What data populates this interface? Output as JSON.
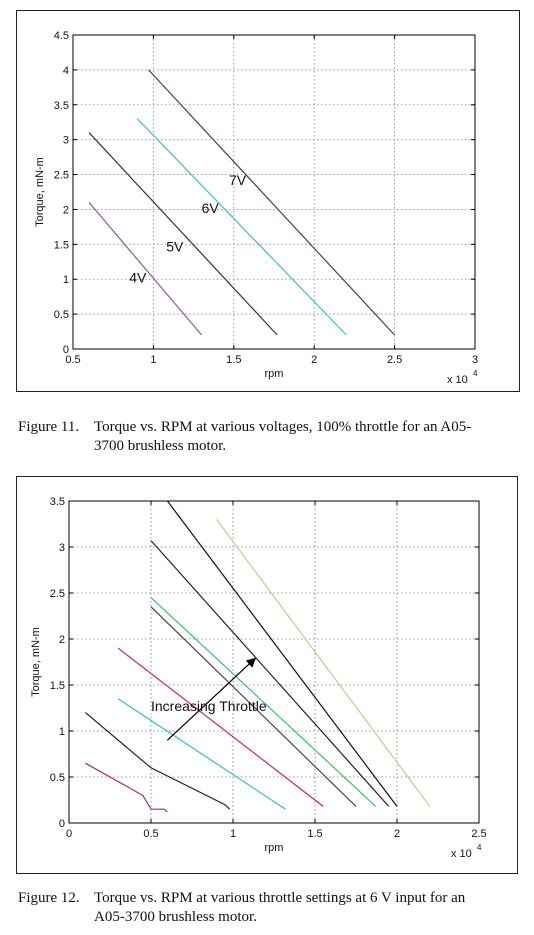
{
  "colors": {
    "grid": "#9a9a9a",
    "axis": "#000000"
  },
  "figures": [
    {
      "caption": {
        "number": "Figure 11.",
        "text1": "Torque vs. RPM at various voltages, 100% throttle for an A05-",
        "text2": "3700 brushless motor."
      }
    },
    {
      "caption": {
        "number": "Figure 12.",
        "text1": "Torque vs. RPM at various throttle settings at 6 V input for an",
        "text2": "A05-3700 brushless motor."
      }
    }
  ],
  "chart_data": [
    {
      "type": "line",
      "xlabel": "rpm",
      "ylabel": "Torque, mN-m",
      "x_multiplier_label": "x 10",
      "x_multiplier_exp": "4",
      "xlim": [
        0.5,
        3
      ],
      "ylim": [
        0,
        4.5
      ],
      "xticks": [
        0.5,
        1,
        1.5,
        2,
        2.5,
        3
      ],
      "yticks": [
        0,
        0.5,
        1,
        1.5,
        2,
        2.5,
        3,
        3.5,
        4,
        4.5
      ],
      "xtick_labels": [
        "0.5",
        "1",
        "1.5",
        "2",
        "2.5",
        "3"
      ],
      "ytick_labels": [
        "0",
        "0.5",
        "1",
        "1.5",
        "2",
        "2.5",
        "3",
        "3.5",
        "4",
        "4.5"
      ],
      "grid": true,
      "series": [
        {
          "name": "4V",
          "color": "#8a5a9a",
          "x": [
            0.6,
            1.3
          ],
          "y": [
            2.1,
            0.2
          ]
        },
        {
          "name": "5V",
          "color": "#333333",
          "x": [
            0.6,
            1.77
          ],
          "y": [
            3.1,
            0.2
          ]
        },
        {
          "name": "6V",
          "color": "#3cc4b8",
          "x": [
            0.9,
            2.2
          ],
          "y": [
            3.3,
            0.2
          ]
        },
        {
          "name": "7V",
          "color": "#4a4040",
          "x": [
            0.97,
            2.5
          ],
          "y": [
            4.0,
            0.2
          ]
        }
      ],
      "annotations": [
        {
          "text": "4V",
          "x": 0.85,
          "y": 0.95
        },
        {
          "text": "5V",
          "x": 1.08,
          "y": 1.4
        },
        {
          "text": "6V",
          "x": 1.3,
          "y": 1.95
        },
        {
          "text": "7V",
          "x": 1.47,
          "y": 2.35
        }
      ]
    },
    {
      "type": "line",
      "xlabel": "rpm",
      "ylabel": "Torque, mN-m",
      "x_multiplier_label": "x 10",
      "x_multiplier_exp": "4",
      "xlim": [
        0,
        2.5
      ],
      "ylim": [
        0,
        3.5
      ],
      "xticks": [
        0,
        0.5,
        1,
        1.5,
        2,
        2.5
      ],
      "yticks": [
        0,
        0.5,
        1,
        1.5,
        2,
        2.5,
        3,
        3.5
      ],
      "xtick_labels": [
        "0",
        "0.5",
        "1",
        "1.5",
        "2",
        "2.5"
      ],
      "ytick_labels": [
        "0",
        "0.5",
        "1",
        "1.5",
        "2",
        "2.5",
        "3",
        "3.5"
      ],
      "grid": true,
      "series": [
        {
          "color": "#a03070",
          "x": [
            0.1,
            0.45,
            0.5,
            0.58,
            0.6
          ],
          "y": [
            0.65,
            0.3,
            0.15,
            0.15,
            0.12
          ]
        },
        {
          "color": "#222222",
          "x": [
            0.1,
            0.5,
            0.95,
            0.98
          ],
          "y": [
            1.2,
            0.6,
            0.2,
            0.15
          ]
        },
        {
          "color": "#2fc4c0",
          "x": [
            0.3,
            1.32
          ],
          "y": [
            1.35,
            0.15
          ]
        },
        {
          "color": "#c03040",
          "x": [
            0.3,
            1.55
          ],
          "y": [
            1.9,
            0.18
          ]
        },
        {
          "color": "#444444",
          "x": [
            0.5,
            1.75
          ],
          "y": [
            2.35,
            0.18
          ]
        },
        {
          "color": "#3cc060",
          "x": [
            0.5,
            1.87
          ],
          "y": [
            2.45,
            0.18
          ]
        },
        {
          "color": "#222222",
          "x": [
            0.5,
            1.95
          ],
          "y": [
            3.07,
            0.18
          ]
        },
        {
          "color": "#111111",
          "x": [
            0.6,
            2.0
          ],
          "y": [
            3.5,
            0.18
          ]
        },
        {
          "color": "#c8c890",
          "x": [
            0.9,
            2.2
          ],
          "y": [
            3.3,
            0.18
          ]
        }
      ],
      "annotation": {
        "text": "Increasing Throttle",
        "label_x": 0.5,
        "label_y": 1.22,
        "arrow_from": [
          0.6,
          0.9
        ],
        "arrow_to": [
          1.13,
          1.78
        ]
      }
    }
  ]
}
